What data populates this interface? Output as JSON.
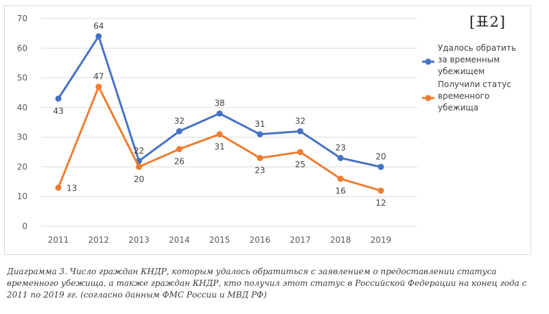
{
  "tag": "[표2]",
  "caption": "Диаграмма 3. Число граждан КНДР, которым удалось обратиться с заявлением о предоставлении статуса временного убежища, а также граждан КНДР, кто получил этот статус в Российской Федерации на конец года с 2011 по 2019 гг. (согласно данным ФМС России и МВД РФ)",
  "chart_data": {
    "type": "line",
    "title": "",
    "xlabel": "",
    "ylabel": "",
    "ylim": [
      0,
      70
    ],
    "yticks": [
      0,
      10,
      20,
      30,
      40,
      50,
      60,
      70
    ],
    "grid": true,
    "legend_position": "right",
    "categories": [
      "2011",
      "2012",
      "2013",
      "2014",
      "2015",
      "2016",
      "2017",
      "2018",
      "2019"
    ],
    "series": [
      {
        "name": "Удалось обратить за временным убежищем",
        "legend_lines": [
          "Удалось обратить",
          "за временным",
          "убежищем"
        ],
        "color": "#4472c4",
        "values": [
          43,
          64,
          22,
          32,
          38,
          31,
          32,
          23,
          20
        ],
        "label_pos": [
          "below",
          "above",
          "above",
          "above",
          "above",
          "above",
          "above",
          "above",
          "above"
        ]
      },
      {
        "name": "Получили статус временного убежища",
        "legend_lines": [
          "Получили статус",
          "временного",
          "убежища"
        ],
        "color": "#ed7d31",
        "values": [
          13,
          47,
          20,
          26,
          31,
          23,
          25,
          16,
          12
        ],
        "label_pos": [
          "right",
          "above",
          "below",
          "below",
          "below",
          "below",
          "below",
          "below",
          "below"
        ]
      }
    ]
  }
}
